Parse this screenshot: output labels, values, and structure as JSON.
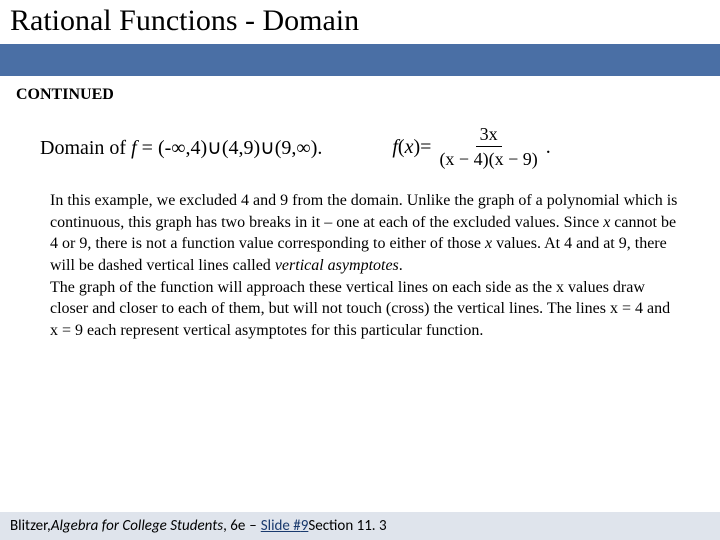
{
  "colors": {
    "blue_bar": "#4a6fa5",
    "footer_bg": "#dfe4ec",
    "title_text": "#000000",
    "body_text": "#000000",
    "slide_link": "#1a3a6e"
  },
  "title": "Rational Functions - Domain",
  "continued_label": "CONTINUED",
  "math": {
    "domain_prefix": "Domain of ",
    "domain_var": "f",
    "domain_eq": " = ",
    "domain_intervals": "(-∞,4)∪(4,9)∪(9,∞).",
    "fx_lhs": "f(x) = ",
    "fx_numerator": "3x",
    "fx_denominator": "(x − 4)(x − 9)",
    "period": "."
  },
  "paragraph": {
    "p1a": "In this example, we excluded 4 and 9 from the domain.  Unlike the graph of a polynomial which is continuous, this graph has two breaks in it – one at each of the excluded values.  Since ",
    "p1b_italic": "x",
    "p1c": " cannot be 4 or 9, there is not a function value corresponding to either of those ",
    "p1d_italic": "x",
    "p1e": " values. At 4 and at 9, there will be dashed vertical lines called ",
    "p1f_italic": "vertical asymptotes",
    "p1g": ".",
    "p2": "The graph of the function will approach these vertical lines on each side as the x values draw closer and closer to each of them, but will not touch (cross) the vertical lines. The lines x = 4 and x = 9 each represent vertical asymptotes for this particular function."
  },
  "footer": {
    "author": "Blitzer, ",
    "book": "Algebra for College Students",
    "edition": ", 6e",
    "dash": " – ",
    "slide_word": "Slide #",
    "slide_num": "9",
    "section": "  Section 11. 3"
  }
}
